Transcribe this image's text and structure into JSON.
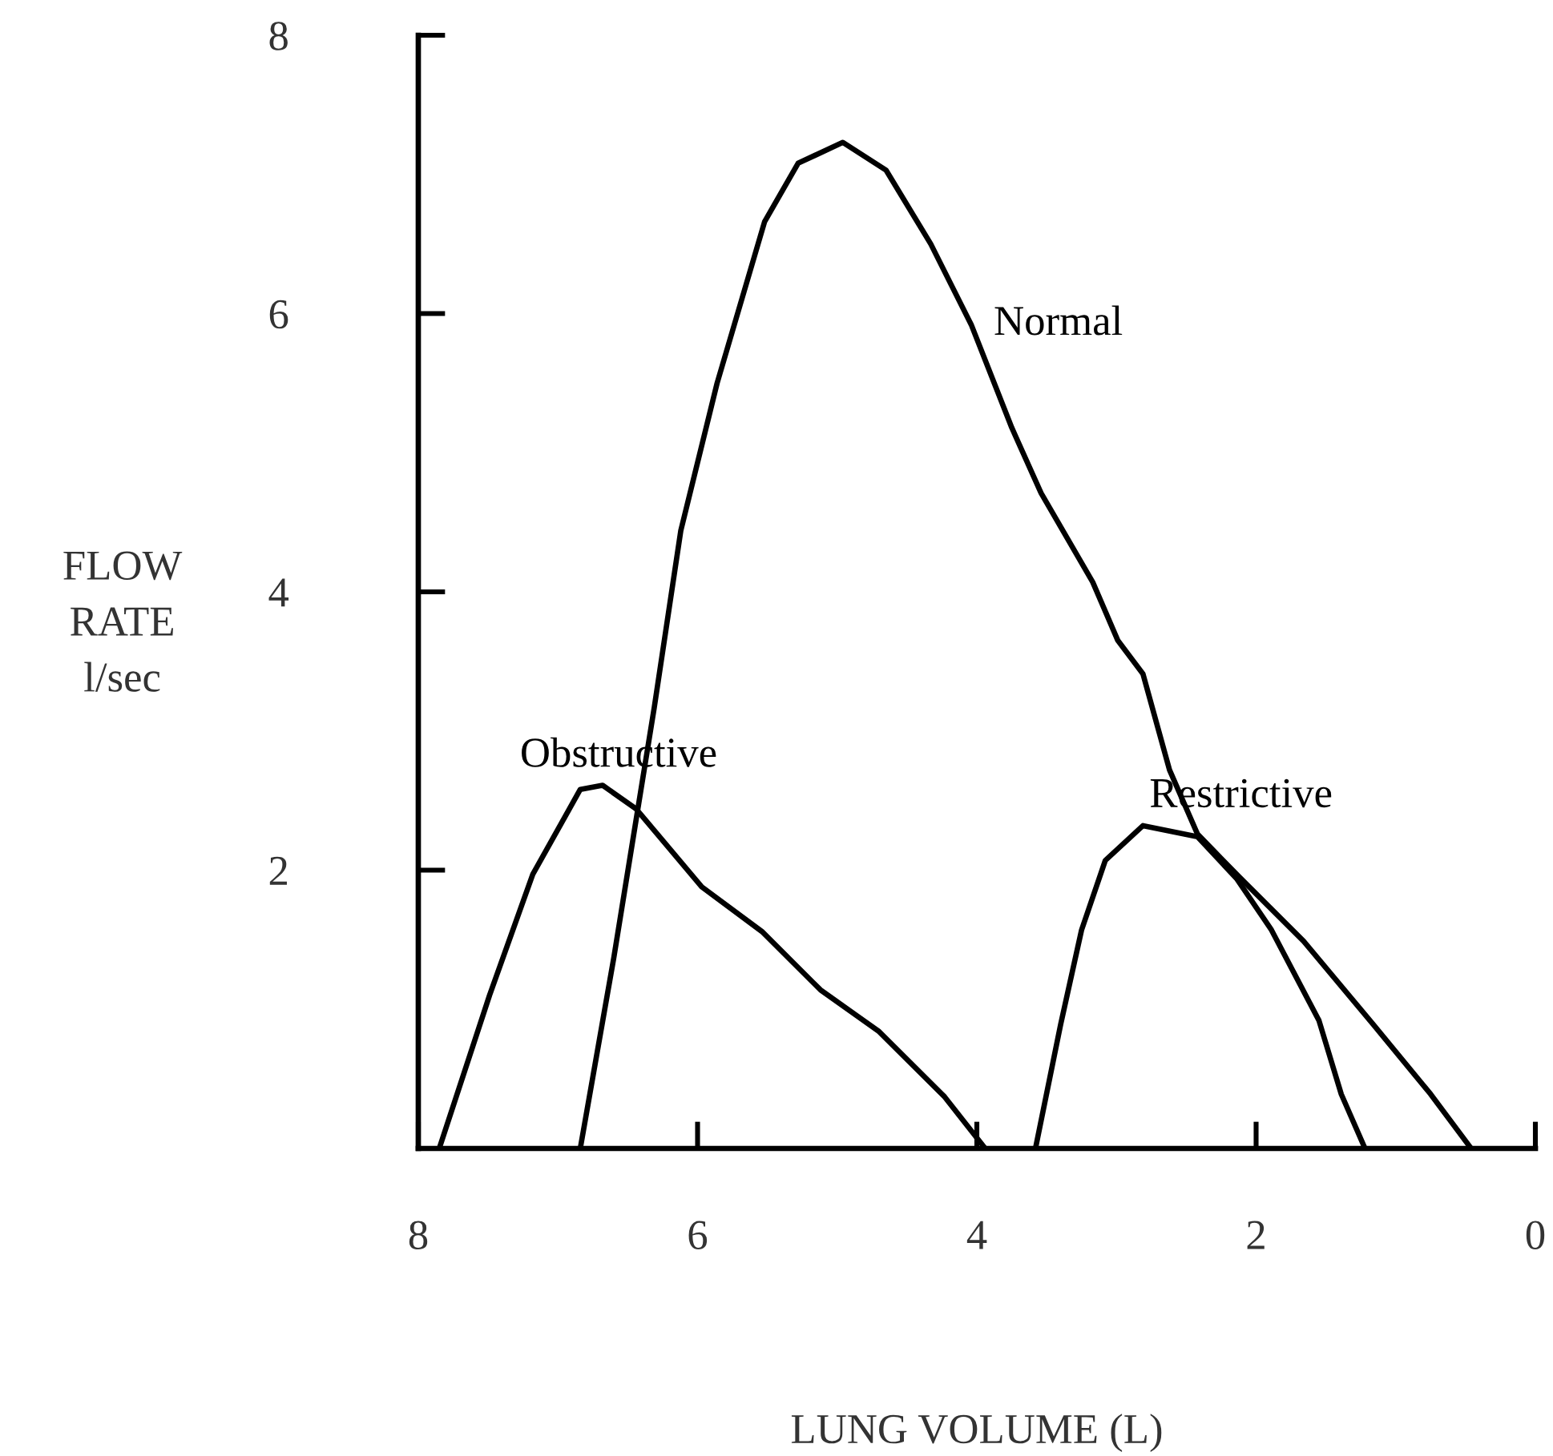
{
  "chart_data": {
    "type": "line",
    "xlabel": "LUNG VOLUME (L)",
    "ylabel": "FLOW\nRATE\nl/sec",
    "xlim": [
      8,
      0
    ],
    "ylim": [
      0,
      8
    ],
    "xticks": [
      8,
      6,
      4,
      2,
      0
    ],
    "yticks": [
      {
        "value": 0,
        "label": null
      },
      2,
      4,
      6,
      8
    ],
    "grid": false,
    "marker": "none",
    "line_style": "solid",
    "series": [
      {
        "name": "Obstructive",
        "color": "#000000",
        "x": [
          7.85,
          7.49,
          7.18,
          6.84,
          6.68,
          6.44,
          5.97,
          5.54,
          5.12,
          4.7,
          4.23,
          3.94
        ],
        "values": [
          0,
          1.1,
          1.97,
          2.58,
          2.61,
          2.44,
          1.88,
          1.56,
          1.14,
          0.84,
          0.37,
          0
        ]
      },
      {
        "name": "Normal",
        "color": "#000000",
        "x": [
          6.84,
          6.6,
          6.31,
          6.12,
          5.86,
          5.52,
          5.28,
          4.96,
          4.65,
          4.33,
          4.04,
          3.75,
          3.54,
          3.17,
          2.99,
          2.81,
          2.62,
          2.42,
          2.12,
          1.66,
          1.16,
          0.75,
          0.46
        ],
        "values": [
          0,
          1.37,
          3.17,
          4.44,
          5.5,
          6.66,
          7.08,
          7.23,
          7.03,
          6.5,
          5.92,
          5.18,
          4.71,
          4.07,
          3.65,
          3.41,
          2.72,
          2.26,
          1.95,
          1.49,
          0.89,
          0.39,
          0
        ]
      },
      {
        "name": "Restrictive",
        "color": "#000000",
        "x": [
          3.58,
          3.4,
          3.25,
          3.08,
          2.81,
          2.42,
          2.14,
          1.89,
          1.55,
          1.39,
          1.22
        ],
        "values": [
          0,
          0.89,
          1.57,
          2.07,
          2.32,
          2.24,
          1.94,
          1.57,
          0.92,
          0.39,
          0
        ]
      }
    ]
  }
}
